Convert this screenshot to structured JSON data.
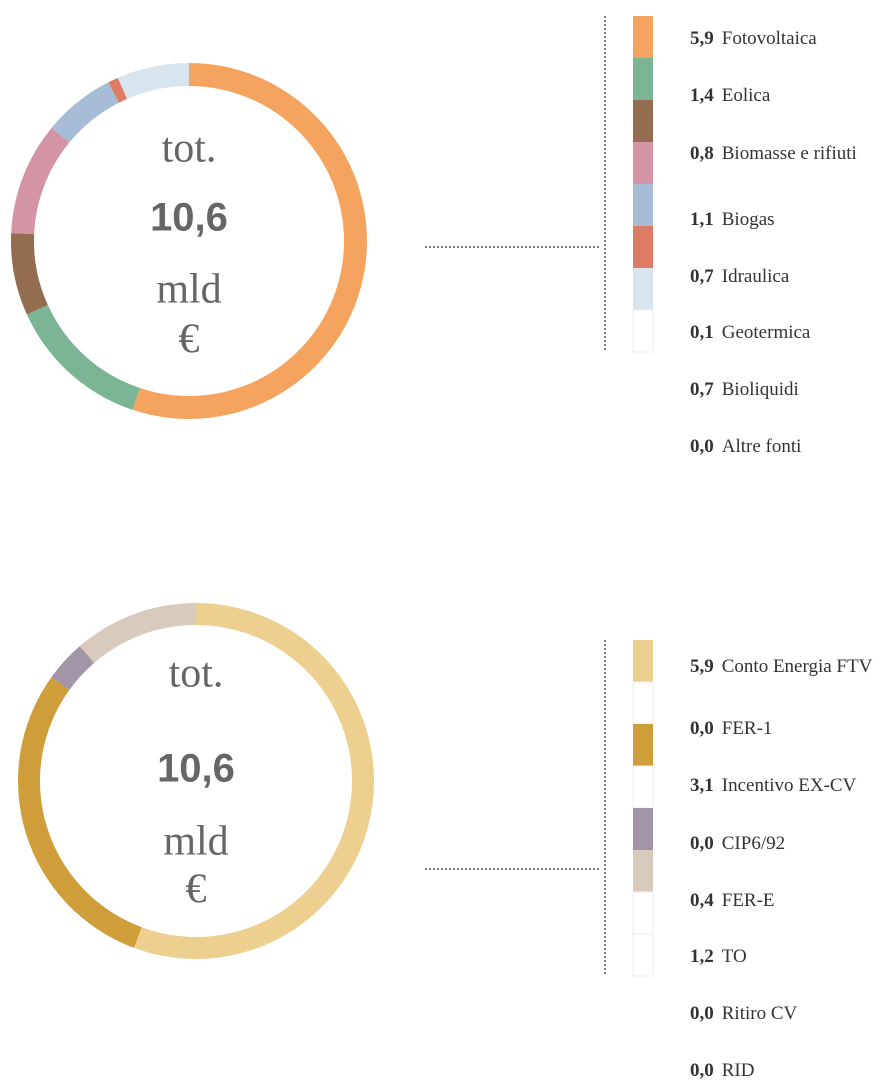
{
  "chart_data": [
    {
      "type": "pie",
      "center_text": [
        "tot.",
        "10,6",
        "mld",
        "€"
      ],
      "categories": [
        "Fotovoltaica",
        "Eolica",
        "Biomasse e rifiuti",
        "Biogas",
        "Idraulica",
        "Geotermica",
        "Bioliquidi",
        "Altre fonti"
      ],
      "values": [
        5.9,
        1.4,
        0.8,
        1.1,
        0.7,
        0.1,
        0.7,
        0.0
      ],
      "value_labels": [
        "5,9",
        "1,4",
        "0,8",
        "1,1",
        "0,7",
        "0,1",
        "0,7",
        "0,0"
      ],
      "colors": [
        "#f5a45f",
        "#7bb595",
        "#946d51",
        "#d395a6",
        "#a7bcd6",
        "#de7b64",
        "#d8e5ef",
        "#ffffff"
      ]
    },
    {
      "type": "pie",
      "center_text": [
        "tot.",
        "10,6",
        "mld",
        "€"
      ],
      "categories": [
        "Conto Energia FTV",
        "FER-1",
        "Incentivo EX-CV",
        "CIP6/92",
        "FER-E",
        "TO",
        "Ritiro CV",
        "RID"
      ],
      "values": [
        5.9,
        0.0,
        3.1,
        0.0,
        0.4,
        1.2,
        0.0,
        0.0
      ],
      "value_labels": [
        "5,9",
        "0,0",
        "3,1",
        "0,0",
        "0,4",
        "1,2",
        "0,0",
        "0,0"
      ],
      "colors": [
        "#edd090",
        "#ffffff",
        "#cf9e3a",
        "#ffffff",
        "#a295a8",
        "#d8cbbd",
        "#ffffff",
        "#ffffff"
      ]
    }
  ]
}
